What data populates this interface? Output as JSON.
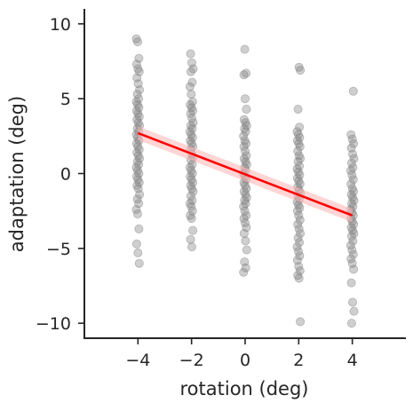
{
  "chart_data": {
    "type": "scatter",
    "xlabel": "rotation (deg)",
    "ylabel": "adaptation (deg)",
    "xlim": [
      -6,
      6
    ],
    "ylim": [
      -11,
      11
    ],
    "xticks": [
      -4,
      -2,
      0,
      2,
      4
    ],
    "xtick_labels": [
      "−4",
      "−2",
      "0",
      "2",
      "4"
    ],
    "yticks": [
      -10,
      -5,
      0,
      5,
      10
    ],
    "ytick_labels": [
      "−10",
      "−5",
      "0",
      "5",
      "10"
    ],
    "grid": false,
    "colors": {
      "points": "#808080",
      "fit_line": "#ff0000",
      "fit_band": "#ffb3b3",
      "axis": "#262626"
    },
    "points": [
      {
        "x": -4,
        "y": [
          9.0,
          8.8,
          7.7,
          7.3,
          7.0,
          6.8,
          6.4,
          6.0,
          5.6,
          5.3,
          5.0,
          4.8,
          4.6,
          4.4,
          4.2,
          4.0,
          3.8,
          3.6,
          3.4,
          3.2,
          3.0,
          2.8,
          2.6,
          2.4,
          2.2,
          2.0,
          1.8,
          1.6,
          1.4,
          1.2,
          1.0,
          0.8,
          0.6,
          0.4,
          0.2,
          0.0,
          -0.2,
          -0.4,
          -0.6,
          -0.8,
          -1.0,
          -1.4,
          -1.7,
          -2.0,
          -2.4,
          -2.7,
          -3.7,
          -4.7,
          -5.3,
          -6.0
        ]
      },
      {
        "x": -2,
        "y": [
          8.0,
          7.4,
          7.0,
          6.8,
          6.1,
          5.8,
          5.3,
          4.8,
          4.6,
          4.4,
          4.2,
          4.0,
          3.7,
          3.4,
          3.2,
          3.0,
          2.8,
          2.6,
          2.4,
          2.2,
          2.0,
          1.8,
          1.6,
          1.3,
          1.1,
          0.9,
          0.6,
          0.4,
          0.2,
          0.0,
          -0.2,
          -0.4,
          -0.6,
          -0.8,
          -1.0,
          -1.2,
          -1.5,
          -1.8,
          -2.0,
          -2.2,
          -2.5,
          -2.8,
          -3.0,
          -3.8,
          -4.4,
          -4.9
        ]
      },
      {
        "x": 0,
        "y": [
          8.3,
          6.7,
          6.6,
          5.0,
          4.3,
          3.6,
          3.4,
          3.2,
          3.0,
          2.8,
          2.5,
          2.2,
          2.0,
          1.8,
          1.5,
          1.2,
          1.0,
          0.8,
          0.6,
          0.4,
          0.2,
          0.0,
          -0.2,
          -0.4,
          -0.6,
          -0.8,
          -1.0,
          -1.2,
          -1.4,
          -1.6,
          -1.8,
          -2.0,
          -2.2,
          -2.5,
          -2.8,
          -3.0,
          -3.3,
          -3.6,
          -4.0,
          -4.5,
          -5.1,
          -5.9,
          -6.3,
          -6.6
        ]
      },
      {
        "x": 2,
        "y": [
          7.1,
          6.9,
          4.3,
          3.1,
          2.8,
          2.6,
          2.4,
          2.2,
          2.0,
          1.8,
          1.5,
          1.2,
          1.0,
          0.8,
          0.5,
          0.3,
          0.1,
          -0.1,
          -0.3,
          -0.5,
          -0.7,
          -0.9,
          -1.1,
          -1.3,
          -1.5,
          -1.7,
          -1.9,
          -2.1,
          -2.3,
          -2.5,
          -2.8,
          -3.1,
          -3.4,
          -3.7,
          -4.0,
          -4.3,
          -4.6,
          -4.9,
          -5.2,
          -5.5,
          -5.8,
          -6.2,
          -6.5,
          -6.8,
          -7.0,
          -9.9
        ]
      },
      {
        "x": 4,
        "y": [
          5.5,
          2.6,
          2.3,
          2.0,
          1.7,
          1.3,
          1.0,
          0.7,
          0.4,
          0.2,
          -0.1,
          -0.4,
          -0.7,
          -1.0,
          -1.2,
          -1.4,
          -1.6,
          -1.8,
          -2.0,
          -2.2,
          -2.4,
          -2.6,
          -2.8,
          -3.0,
          -3.2,
          -3.4,
          -3.6,
          -3.8,
          -4.0,
          -4.2,
          -4.5,
          -4.8,
          -5.1,
          -5.4,
          -5.7,
          -6.0,
          -6.4,
          -7.3,
          -8.6,
          -9.2,
          -10.0
        ]
      }
    ],
    "regression": {
      "x": [
        -4,
        4
      ],
      "y": [
        2.7,
        -2.8
      ],
      "ci_halfwidth": [
        0.45,
        0.45
      ]
    }
  }
}
